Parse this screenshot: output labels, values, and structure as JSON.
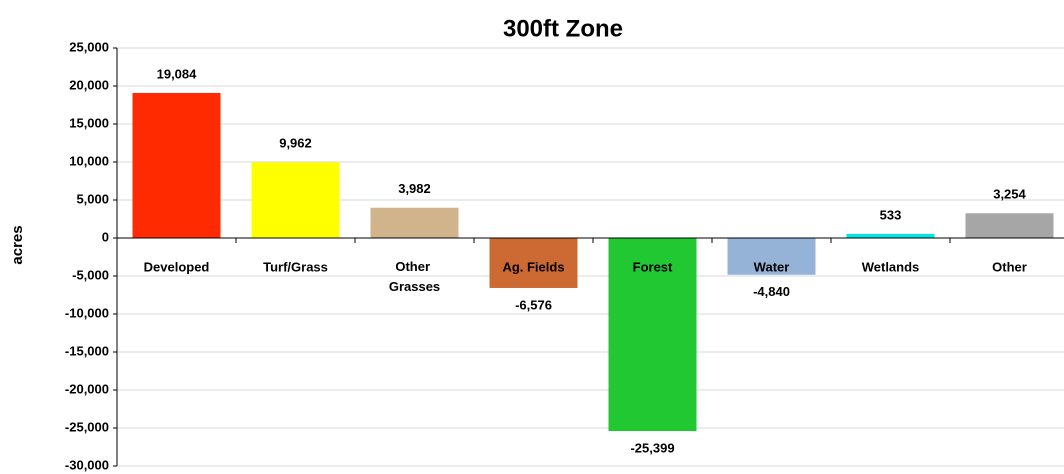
{
  "chart_data": {
    "type": "bar",
    "title": "300ft Zone",
    "y_label": "acres",
    "categories": [
      "Developed",
      "Turf/Grass",
      "Other Grasses",
      "Ag. Fields",
      "Forest",
      "Water",
      "Wetlands",
      "Other"
    ],
    "values": [
      19084,
      9962,
      3982,
      -6576,
      -25399,
      -4840,
      533,
      3254
    ],
    "value_labels": [
      "19,084",
      "9,962",
      "3,982",
      "-6,576",
      "-25,399",
      "-4,840",
      "533",
      "3,254"
    ],
    "colors": [
      "#ff2a00",
      "#ffff00",
      "#d2b48c",
      "#cd6a33",
      "#22c832",
      "#95b3d7",
      "#00e5e5",
      "#a6a6a6"
    ],
    "ylim": [
      -30000,
      25000
    ],
    "yticks": [
      {
        "value": -30000,
        "label": "-30,000"
      },
      {
        "value": -25000,
        "label": "-25,000"
      },
      {
        "value": -20000,
        "label": "-20,000"
      },
      {
        "value": -15000,
        "label": "-15,000"
      },
      {
        "value": -10000,
        "label": "-10,000"
      },
      {
        "value": -5000,
        "label": "-5,000"
      },
      0,
      {
        "value": 5000,
        "label": "5,000"
      },
      {
        "value": 10000,
        "label": "10,000"
      },
      {
        "value": 15000,
        "label": "15,000"
      },
      {
        "value": 20000,
        "label": "20,000"
      },
      {
        "value": 25000,
        "label": "25,000"
      }
    ],
    "grid": true
  }
}
